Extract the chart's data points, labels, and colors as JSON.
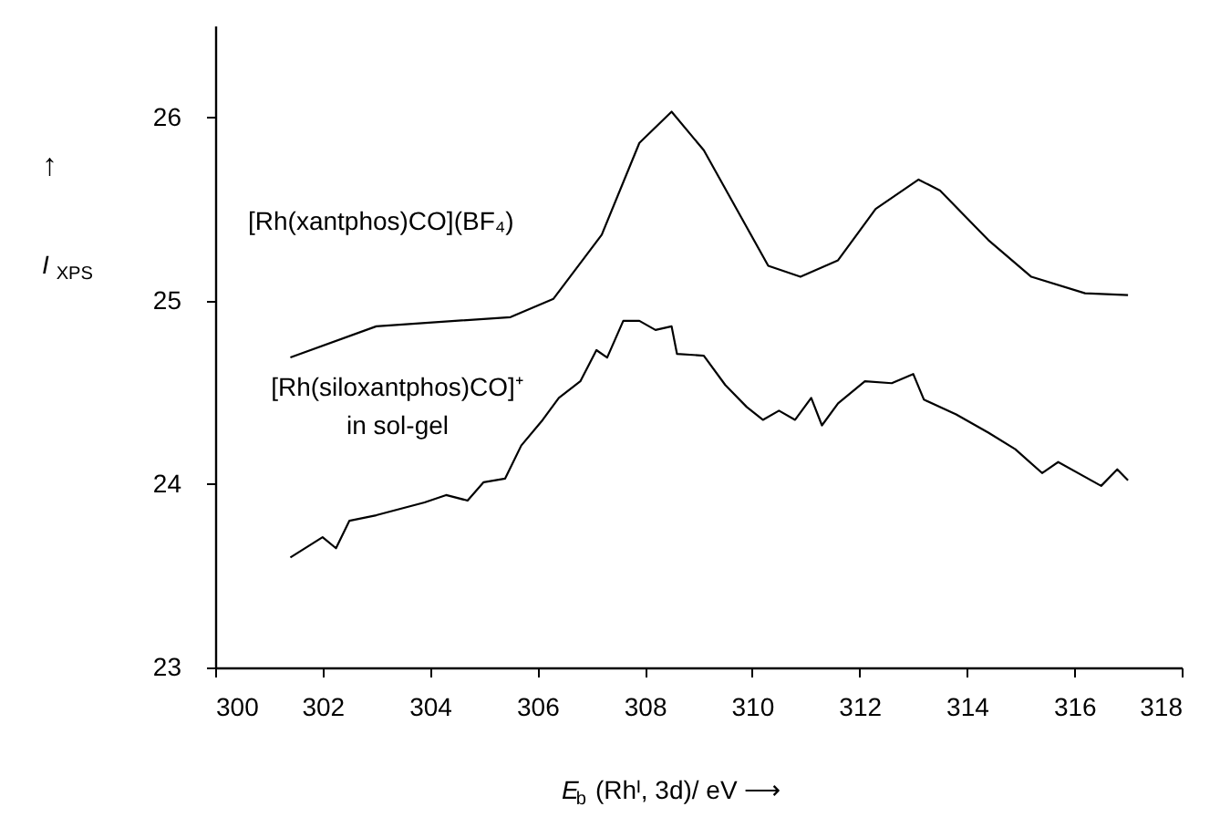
{
  "chart_data": {
    "type": "line",
    "xlabel": "E$_{b}$ (Rhᴵ, 3d)/ eV ⟶",
    "ylabel": "↑\nI$_{XPS}$",
    "xlim": [
      300,
      318
    ],
    "xticks": [
      300,
      302,
      304,
      306,
      308,
      310,
      312,
      314,
      316,
      318
    ],
    "ylim": [
      23,
      26.5
    ],
    "yticks": [
      23,
      24,
      25,
      26
    ],
    "grid": false,
    "legend": false,
    "marker": "none",
    "line_style": "solid",
    "series": [
      {
        "name": "[Rh(xantphos)CO](BF₄)",
        "color": "#000000",
        "x": [
          301.4,
          303.0,
          305.5,
          306.3,
          307.2,
          307.9,
          308.5,
          309.1,
          309.9,
          310.3,
          310.9,
          311.6,
          312.3,
          313.1,
          313.5,
          314.4,
          315.2,
          316.2,
          317.0
        ],
        "values": [
          24.69,
          24.86,
          24.91,
          25.01,
          25.36,
          25.86,
          26.03,
          25.82,
          25.4,
          25.19,
          25.13,
          25.22,
          25.5,
          25.66,
          25.6,
          25.33,
          25.13,
          25.04,
          25.03
        ]
      },
      {
        "name": "[Rh(siloxantphos)CO]⁺\nin sol-gel",
        "color": "#000000",
        "x": [
          301.4,
          302.0,
          302.25,
          302.5,
          303.0,
          303.9,
          304.3,
          304.7,
          305.0,
          305.4,
          305.7,
          306.1,
          306.4,
          306.8,
          307.1,
          307.3,
          307.6,
          307.9,
          308.2,
          308.5,
          308.6,
          309.1,
          309.5,
          309.9,
          310.2,
          310.5,
          310.8,
          311.1,
          311.3,
          311.6,
          312.1,
          312.6,
          313.0,
          313.2,
          313.8,
          314.4,
          314.9,
          315.4,
          315.7,
          316.5,
          316.8,
          317.0
        ],
        "values": [
          23.6,
          23.71,
          23.65,
          23.8,
          23.83,
          23.9,
          23.94,
          23.91,
          24.01,
          24.03,
          24.21,
          24.35,
          24.47,
          24.56,
          24.73,
          24.69,
          24.89,
          24.89,
          24.84,
          24.86,
          24.71,
          24.7,
          24.54,
          24.42,
          24.35,
          24.4,
          24.35,
          24.47,
          24.32,
          24.44,
          24.56,
          24.55,
          24.6,
          24.46,
          24.38,
          24.28,
          24.19,
          24.06,
          24.12,
          23.99,
          24.08,
          24.02
        ]
      }
    ]
  }
}
